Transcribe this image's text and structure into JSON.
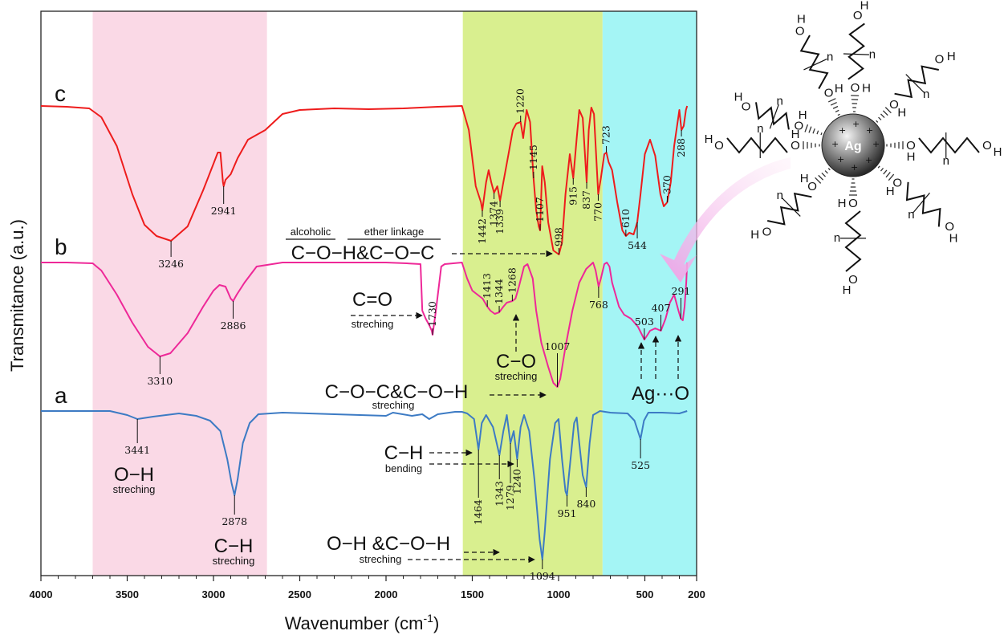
{
  "chart_data": {
    "type": "line",
    "xlabel": "Wavenumber (cm",
    "xlabel_sup": "-1",
    "xlabel_end": ")",
    "ylabel": "Transmitance (a.u.)",
    "xlim": [
      4000,
      200
    ],
    "xticks": [
      4000,
      3500,
      3000,
      2500,
      2000,
      1500,
      1000,
      500,
      200
    ],
    "bands": [
      {
        "from": 3700,
        "to": 2690,
        "color": "#fad9e6"
      },
      {
        "from": 1555,
        "to": 745,
        "color": "#d9ef8f"
      },
      {
        "from": 745,
        "to": 200,
        "color": "#a4f5f5"
      }
    ],
    "series": [
      {
        "name": "c",
        "color": "#ee1c1c",
        "points": [
          [
            4000,
            0
          ],
          [
            3850,
            -1
          ],
          [
            3720,
            -3
          ],
          [
            3650,
            -14
          ],
          [
            3560,
            -50
          ],
          [
            3470,
            -110
          ],
          [
            3400,
            -148
          ],
          [
            3330,
            -162
          ],
          [
            3246,
            -168
          ],
          [
            3150,
            -150
          ],
          [
            3060,
            -105
          ],
          [
            3000,
            -72
          ],
          [
            2975,
            -58
          ],
          [
            2960,
            -58
          ],
          [
            2945,
            -95
          ],
          [
            2941,
            -100
          ],
          [
            2930,
            -92
          ],
          [
            2900,
            -85
          ],
          [
            2860,
            -65
          ],
          [
            2800,
            -42
          ],
          [
            2700,
            -30
          ],
          [
            2600,
            -10
          ],
          [
            2500,
            -5
          ],
          [
            2300,
            -3
          ],
          [
            2100,
            -4
          ],
          [
            1900,
            -3
          ],
          [
            1700,
            -1
          ],
          [
            1560,
            0
          ],
          [
            1520,
            -30
          ],
          [
            1480,
            -100
          ],
          [
            1450,
            -120
          ],
          [
            1442,
            -130
          ],
          [
            1420,
            -95
          ],
          [
            1405,
            -80
          ],
          [
            1390,
            -95
          ],
          [
            1374,
            -108
          ],
          [
            1355,
            -100
          ],
          [
            1339,
            -118
          ],
          [
            1320,
            -95
          ],
          [
            1290,
            -60
          ],
          [
            1265,
            -30
          ],
          [
            1245,
            -22
          ],
          [
            1220,
            -20
          ],
          [
            1205,
            -40
          ],
          [
            1185,
            -5
          ],
          [
            1165,
            -20
          ],
          [
            1145,
            -90
          ],
          [
            1130,
            -130
          ],
          [
            1115,
            -150
          ],
          [
            1107,
            -155
          ],
          [
            1095,
            -75
          ],
          [
            1080,
            -95
          ],
          [
            1060,
            -145
          ],
          [
            1030,
            -180
          ],
          [
            998,
            -185
          ],
          [
            980,
            -170
          ],
          [
            960,
            -110
          ],
          [
            935,
            -60
          ],
          [
            915,
            -90
          ],
          [
            895,
            -40
          ],
          [
            880,
            -5
          ],
          [
            860,
            -15
          ],
          [
            837,
            -95
          ],
          [
            825,
            -30
          ],
          [
            810,
            -2
          ],
          [
            795,
            -10
          ],
          [
            770,
            -110
          ],
          [
            755,
            -90
          ],
          [
            735,
            -60
          ],
          [
            723,
            -58
          ],
          [
            710,
            -70
          ],
          [
            690,
            -80
          ],
          [
            660,
            -120
          ],
          [
            630,
            -155
          ],
          [
            610,
            -162
          ],
          [
            590,
            -158
          ],
          [
            565,
            -160
          ],
          [
            544,
            -145
          ],
          [
            525,
            -110
          ],
          [
            500,
            -60
          ],
          [
            470,
            -42
          ],
          [
            440,
            -62
          ],
          [
            410,
            -110
          ],
          [
            390,
            -125
          ],
          [
            370,
            -120
          ],
          [
            350,
            -95
          ],
          [
            330,
            -50
          ],
          [
            300,
            -5
          ],
          [
            288,
            -30
          ],
          [
            275,
            -25
          ],
          [
            262,
            -5
          ],
          [
            255,
            0
          ]
        ]
      },
      {
        "name": "b",
        "color": "#ee2898",
        "points": [
          [
            4000,
            0
          ],
          [
            3850,
            0
          ],
          [
            3700,
            -1
          ],
          [
            3650,
            -10
          ],
          [
            3560,
            -40
          ],
          [
            3470,
            -75
          ],
          [
            3380,
            -105
          ],
          [
            3310,
            -117
          ],
          [
            3250,
            -113
          ],
          [
            3150,
            -88
          ],
          [
            3060,
            -55
          ],
          [
            3000,
            -35
          ],
          [
            2965,
            -28
          ],
          [
            2930,
            -30
          ],
          [
            2900,
            -45
          ],
          [
            2886,
            -48
          ],
          [
            2865,
            -40
          ],
          [
            2820,
            -25
          ],
          [
            2750,
            -5
          ],
          [
            2600,
            0
          ],
          [
            2300,
            0
          ],
          [
            2000,
            0
          ],
          [
            1880,
            -1
          ],
          [
            1800,
            -2
          ],
          [
            1790,
            -60
          ],
          [
            1770,
            -70
          ],
          [
            1750,
            -78
          ],
          [
            1735,
            -85
          ],
          [
            1730,
            -90
          ],
          [
            1712,
            -62
          ],
          [
            1680,
            -5
          ],
          [
            1660,
            -2
          ],
          [
            1560,
            0
          ],
          [
            1530,
            -20
          ],
          [
            1500,
            -35
          ],
          [
            1470,
            -40
          ],
          [
            1440,
            -45
          ],
          [
            1413,
            -55
          ],
          [
            1395,
            -60
          ],
          [
            1370,
            -64
          ],
          [
            1344,
            -62
          ],
          [
            1320,
            -55
          ],
          [
            1300,
            -50
          ],
          [
            1268,
            -48
          ],
          [
            1250,
            -45
          ],
          [
            1230,
            -30
          ],
          [
            1200,
            -5
          ],
          [
            1180,
            -2
          ],
          [
            1150,
            -20
          ],
          [
            1130,
            -60
          ],
          [
            1100,
            -100
          ],
          [
            1060,
            -130
          ],
          [
            1030,
            -150
          ],
          [
            1007,
            -155
          ],
          [
            990,
            -145
          ],
          [
            960,
            -105
          ],
          [
            920,
            -60
          ],
          [
            880,
            -25
          ],
          [
            840,
            -8
          ],
          [
            800,
            0
          ],
          [
            785,
            -10
          ],
          [
            768,
            -30
          ],
          [
            755,
            -20
          ],
          [
            735,
            -2
          ],
          [
            720,
            0
          ],
          [
            705,
            -5
          ],
          [
            690,
            -25
          ],
          [
            650,
            -55
          ],
          [
            620,
            -65
          ],
          [
            580,
            -70
          ],
          [
            540,
            -80
          ],
          [
            503,
            -96
          ],
          [
            490,
            -92
          ],
          [
            470,
            -85
          ],
          [
            440,
            -82
          ],
          [
            407,
            -85
          ],
          [
            380,
            -70
          ],
          [
            355,
            -50
          ],
          [
            330,
            -40
          ],
          [
            305,
            -60
          ],
          [
            291,
            -70
          ],
          [
            280,
            -72
          ],
          [
            270,
            -55
          ],
          [
            260,
            -25
          ],
          [
            255,
            0
          ]
        ]
      },
      {
        "name": "a",
        "color": "#3d7bc4",
        "points": [
          [
            4000,
            0
          ],
          [
            3800,
            0
          ],
          [
            3600,
            0
          ],
          [
            3500,
            -5
          ],
          [
            3441,
            -10
          ],
          [
            3350,
            -7
          ],
          [
            3200,
            -3
          ],
          [
            3100,
            -6
          ],
          [
            3020,
            -12
          ],
          [
            2960,
            -25
          ],
          [
            2920,
            -60
          ],
          [
            2895,
            -90
          ],
          [
            2878,
            -105
          ],
          [
            2860,
            -85
          ],
          [
            2830,
            -40
          ],
          [
            2790,
            -15
          ],
          [
            2740,
            -4
          ],
          [
            2600,
            -2
          ],
          [
            2300,
            -4
          ],
          [
            2000,
            -6
          ],
          [
            1960,
            -2
          ],
          [
            1850,
            -6
          ],
          [
            1790,
            -4
          ],
          [
            1750,
            -10
          ],
          [
            1700,
            -4
          ],
          [
            1600,
            -1
          ],
          [
            1560,
            -1
          ],
          [
            1530,
            -3
          ],
          [
            1490,
            -10
          ],
          [
            1464,
            -48
          ],
          [
            1445,
            -15
          ],
          [
            1420,
            -5
          ],
          [
            1380,
            -20
          ],
          [
            1343,
            -55
          ],
          [
            1320,
            -25
          ],
          [
            1300,
            -5
          ],
          [
            1279,
            -40
          ],
          [
            1260,
            -25
          ],
          [
            1240,
            -60
          ],
          [
            1220,
            -20
          ],
          [
            1200,
            -5
          ],
          [
            1170,
            -25
          ],
          [
            1140,
            -85
          ],
          [
            1110,
            -160
          ],
          [
            1094,
            -185
          ],
          [
            1080,
            -150
          ],
          [
            1050,
            -60
          ],
          [
            1020,
            -15
          ],
          [
            1000,
            -10
          ],
          [
            980,
            -60
          ],
          [
            960,
            -100
          ],
          [
            951,
            -105
          ],
          [
            940,
            -80
          ],
          [
            910,
            -15
          ],
          [
            895,
            -8
          ],
          [
            880,
            -40
          ],
          [
            860,
            -80
          ],
          [
            840,
            -95
          ],
          [
            820,
            -40
          ],
          [
            800,
            -5
          ],
          [
            760,
            0
          ],
          [
            700,
            -2
          ],
          [
            600,
            -3
          ],
          [
            560,
            -12
          ],
          [
            525,
            -35
          ],
          [
            505,
            -12
          ],
          [
            480,
            -2
          ],
          [
            400,
            -2
          ],
          [
            300,
            -3
          ],
          [
            255,
            0
          ]
        ]
      }
    ]
  },
  "series_labels": {
    "a": "a",
    "b": "b",
    "c": "c"
  },
  "peaks_c": {
    "p3246": "3246",
    "p2941": "2941",
    "p1442": "1442",
    "p1374": "1374",
    "p1339": "1339",
    "p1220": "1220",
    "p1145": "1145",
    "p1107": "1107",
    "p998": "998",
    "p915": "915",
    "p837": "837",
    "p770": "770",
    "p723": "723",
    "p610": "610",
    "p544": "544",
    "p370": "370",
    "p288": "288"
  },
  "peaks_b": {
    "p3310": "3310",
    "p2886": "2886",
    "p1730": "1730",
    "p1413": "1413",
    "p1344": "1344",
    "p1268": "1268",
    "p1007": "1007",
    "p768": "768",
    "p503": "503",
    "p407": "407",
    "p291": "291"
  },
  "peaks_a": {
    "p3441": "3441",
    "p2878": "2878",
    "p1464": "1464",
    "p1343": "1343",
    "p1279": "1279",
    "p1240": "1240",
    "p1094": "1094",
    "p951": "951",
    "p840": "840",
    "p525": "525"
  },
  "annotations": {
    "alcoholic": "alcoholic",
    "ether_linkage": "ether linkage",
    "coh_coc": "C−O−H&C−O−C",
    "co_double": "C=O",
    "co_double_sub": "streching",
    "co_single": "C−O",
    "co_single_sub": "streching",
    "coc_coh": "C−O−C&C−O−H",
    "coc_coh_sub": "streching",
    "ch_bend": "C−H",
    "ch_bend_sub": "bending",
    "oh_coh": "O−H &C−O−H",
    "oh_coh_sub": "streching",
    "oh_str": "O−H",
    "oh_str_sub": "streching",
    "ch_str": "C−H",
    "ch_str_sub": "streching",
    "ag_o": "Ag···O"
  },
  "molecule": {
    "center": "Ag",
    "atoms": {
      "h": "H",
      "o": "O",
      "n": "n"
    }
  }
}
